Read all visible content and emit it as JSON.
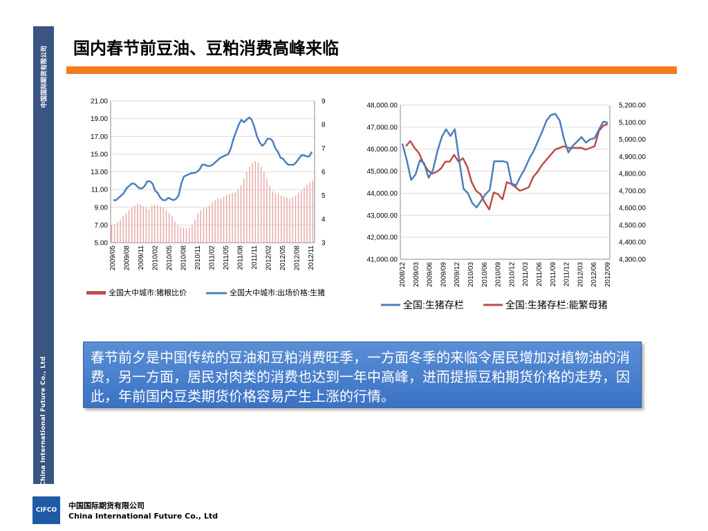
{
  "sidebar": {
    "top_text": "中国国际期货有限公司",
    "bottom_text": "China International Future Co., Ltd"
  },
  "title": "国内春节前豆油、豆粕消费高峰来临",
  "colors": {
    "title_bar": "#f47a20",
    "sidebar": "#3a5583",
    "series_blue": "#4a7ebb",
    "series_red": "#be4b48",
    "bar_fill": "#e8a6a4"
  },
  "text_box": "春节前夕是中国传统的豆油和豆粕消费旺季，一方面冬季的来临令居民增加对植物油的消费，另一方面，居民对肉类的消费也达到一年中高峰，进而提振豆粕期货价格的走势，因此，年前国内豆类期货价格容易产生上涨的行情。",
  "footer": {
    "logo_text": "CIFCO",
    "company_cn": "中国国际期货有限公司",
    "company_en": "China International Future Co., Ltd"
  },
  "chart_data": [
    {
      "type": "bar+line",
      "x_ticks": [
        "2009/05",
        "2009/08",
        "2009/11",
        "2010/02",
        "2010/05",
        "2010/08",
        "2010/11",
        "2011/02",
        "2011/05",
        "2011/08",
        "2011/11",
        "2012/02",
        "2012/05",
        "2012/08",
        "2012/11"
      ],
      "left_axis": {
        "ylim": [
          5,
          21
        ],
        "ticks": [
          "21.00",
          "19.00",
          "17.00",
          "15.00",
          "13.00",
          "11.00",
          "9.00",
          "7.00",
          "5.00"
        ]
      },
      "right_axis": {
        "ylim": [
          3,
          9
        ],
        "ticks": [
          "9",
          "8",
          "7",
          "6",
          "5",
          "4",
          "3"
        ]
      },
      "series": [
        {
          "name": "全国大中城市:猪粮比价",
          "kind": "bar",
          "axis": "left",
          "values": [
            7.0,
            7.1,
            7.3,
            7.6,
            8.0,
            8.3,
            8.7,
            9.0,
            9.2,
            9.4,
            9.3,
            9.1,
            9.0,
            8.8,
            9.2,
            9.3,
            9.2,
            9.1,
            9.0,
            8.7,
            8.4,
            8.0,
            7.4,
            7.0,
            6.8,
            6.7,
            6.6,
            6.7,
            7.0,
            7.6,
            8.3,
            8.7,
            8.9,
            9.0,
            9.2,
            9.5,
            9.8,
            10.0,
            10.0,
            10.2,
            10.4,
            10.5,
            10.6,
            10.7,
            11.0,
            11.5,
            12.2,
            13.0,
            13.6,
            14.0,
            14.2,
            14.0,
            13.6,
            13.0,
            12.2,
            11.4,
            10.8,
            10.6,
            10.5,
            10.3,
            10.2,
            10.1,
            10.0,
            10.1,
            10.3,
            10.6,
            10.9,
            11.2,
            11.5,
            11.8,
            12.0
          ]
        },
        {
          "name": "全国大中城市:出场价格:生猪",
          "kind": "line",
          "axis": "right",
          "values": [
            4.8,
            4.8,
            4.9,
            5.0,
            5.1,
            5.3,
            5.4,
            5.5,
            5.5,
            5.4,
            5.3,
            5.3,
            5.4,
            5.6,
            5.6,
            5.5,
            5.2,
            5.1,
            4.9,
            4.8,
            4.8,
            4.9,
            4.85,
            4.8,
            4.85,
            5.0,
            5.5,
            5.8,
            5.85,
            5.9,
            5.95,
            5.95,
            6.0,
            6.1,
            6.3,
            6.3,
            6.25,
            6.25,
            6.3,
            6.4,
            6.5,
            6.6,
            6.65,
            6.7,
            6.75,
            7.0,
            7.4,
            7.7,
            8.0,
            8.2,
            8.1,
            8.2,
            8.3,
            8.2,
            7.9,
            7.5,
            7.25,
            7.1,
            7.2,
            7.4,
            7.4,
            7.3,
            7.0,
            6.85,
            6.6,
            6.55,
            6.4,
            6.3,
            6.3,
            6.3,
            6.4,
            6.55,
            6.7,
            6.7,
            6.65,
            6.65,
            6.85
          ]
        }
      ]
    },
    {
      "type": "line",
      "x_ticks": [
        "2008/12",
        "2009/03",
        "2009/06",
        "2009/09",
        "2009/12",
        "2010/03",
        "2010/06",
        "2010/09",
        "2010/12",
        "2011/03",
        "2011/06",
        "2011/09",
        "2011/12",
        "2012/03",
        "2012/06",
        "2012/09"
      ],
      "left_axis": {
        "ylim": [
          41000,
          48000
        ],
        "ticks": [
          "48,000.00",
          "47,000.00",
          "46,000.00",
          "45,000.00",
          "44,000.00",
          "43,000.00",
          "42,000.00",
          "41,000.00"
        ]
      },
      "right_axis": {
        "ylim": [
          4300,
          5200
        ],
        "ticks": [
          "5,200.00",
          "5,100.00",
          "5,000.00",
          "4,900.00",
          "4,800.00",
          "4,700.00",
          "4,600.00",
          "4,500.00",
          "4,400.00",
          "4,300.00"
        ]
      },
      "series": [
        {
          "name": "全国:生猪存栏",
          "axis": "left",
          "values": [
            46250,
            45500,
            44600,
            44850,
            45500,
            45350,
            44700,
            45050,
            45900,
            46550,
            46900,
            46600,
            46900,
            45500,
            44200,
            44000,
            43550,
            43350,
            43650,
            43950,
            44150,
            45450,
            45450,
            45450,
            45400,
            44450,
            44350,
            44750,
            45100,
            45550,
            45900,
            46350,
            46800,
            47300,
            47550,
            47600,
            47300,
            46450,
            45850,
            46150,
            46350,
            46550,
            46300,
            46450,
            46500,
            46900,
            47250,
            47200
          ]
        },
        {
          "name": "全国:生猪存栏:能繁母猪",
          "axis": "right",
          "values": [
            4960,
            4990,
            4950,
            4920,
            4860,
            4820,
            4800,
            4810,
            4830,
            4870,
            4870,
            4910,
            4870,
            4890,
            4840,
            4750,
            4700,
            4680,
            4630,
            4590,
            4690,
            4680,
            4650,
            4750,
            4740,
            4720,
            4700,
            4710,
            4720,
            4780,
            4810,
            4850,
            4880,
            4910,
            4940,
            4950,
            4960,
            4950,
            4950,
            4950,
            4950,
            4940,
            4950,
            4960,
            5050,
            5080,
            5090
          ]
        }
      ]
    }
  ]
}
